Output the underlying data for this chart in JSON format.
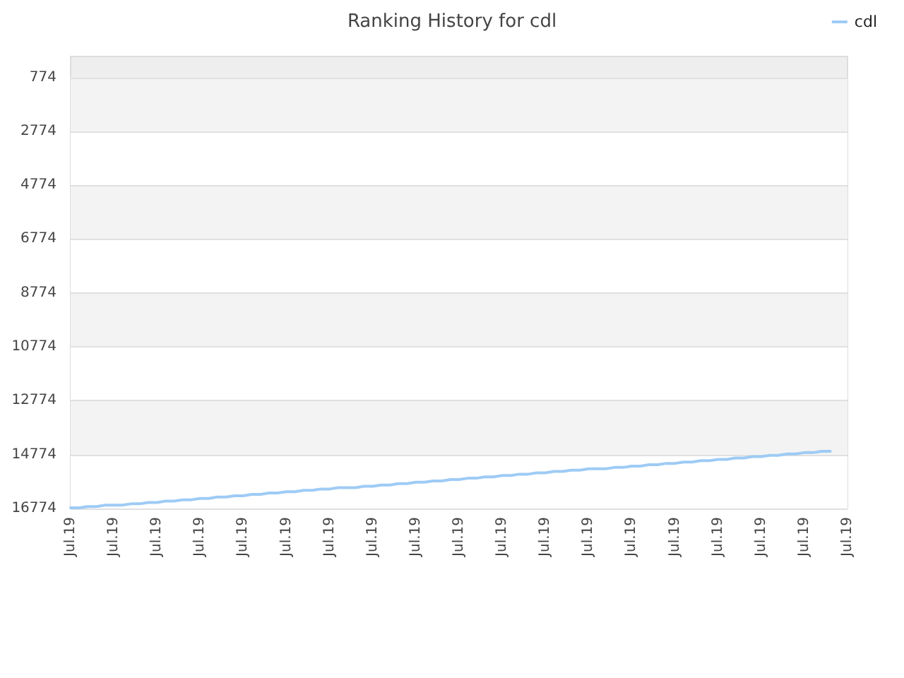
{
  "chart_data": {
    "type": "line",
    "title": "Ranking History for cdl",
    "categories": [
      "Jul.19",
      null,
      null,
      null,
      null,
      "Jul.19",
      null,
      null,
      null,
      null,
      "Jul.19",
      null,
      null,
      null,
      null,
      "Jul.19",
      null,
      null,
      null,
      null,
      "Jul.19",
      null,
      null,
      null,
      null,
      "Jul.19",
      null,
      null,
      null,
      null,
      "Jul.19",
      null,
      null,
      null,
      null,
      "Jul.19",
      null,
      null,
      null,
      null,
      "Jul.19",
      null,
      null,
      null,
      null,
      "Jul.19",
      null,
      null,
      null,
      null,
      "Jul.19",
      null,
      null,
      null,
      null,
      "Jul.19",
      null,
      null,
      null,
      null,
      "Jul.19",
      null,
      null,
      null,
      null,
      "Jul.19",
      null,
      null,
      null,
      null,
      "Jul.19",
      null,
      null,
      null,
      null,
      "Jul.19",
      null,
      null,
      null,
      null,
      "Jul.19",
      null,
      null,
      null,
      null,
      "Jul.19",
      null,
      null,
      null,
      null,
      "Jul.19"
    ],
    "ylim": [
      16774,
      0
    ],
    "yticks": [
      774,
      2774,
      4774,
      6774,
      8774,
      10774,
      12774,
      14774,
      16774
    ],
    "series": [
      {
        "name": "cdl",
        "color": "#9ecbf5",
        "values": [
          16750,
          16750,
          16700,
          16700,
          16650,
          16650,
          16650,
          16600,
          16600,
          16550,
          16550,
          16500,
          16500,
          16450,
          16450,
          16400,
          16400,
          16350,
          16350,
          16300,
          16300,
          16250,
          16250,
          16200,
          16200,
          16150,
          16150,
          16100,
          16100,
          16050,
          16050,
          16000,
          16000,
          16000,
          15950,
          15950,
          15900,
          15900,
          15850,
          15850,
          15800,
          15800,
          15750,
          15750,
          15700,
          15700,
          15650,
          15650,
          15600,
          15600,
          15550,
          15550,
          15500,
          15500,
          15450,
          15450,
          15400,
          15400,
          15350,
          15350,
          15300,
          15300,
          15300,
          15250,
          15250,
          15200,
          15200,
          15150,
          15150,
          15100,
          15100,
          15050,
          15050,
          15000,
          15000,
          14950,
          14950,
          14900,
          14900,
          14850,
          14850,
          14800,
          14800,
          14750,
          14750,
          14700,
          14700,
          14650,
          14650,
          null,
          null
        ]
      }
    ],
    "grid": "y",
    "legend": "top right",
    "marker": "none",
    "line_style": "solid"
  }
}
